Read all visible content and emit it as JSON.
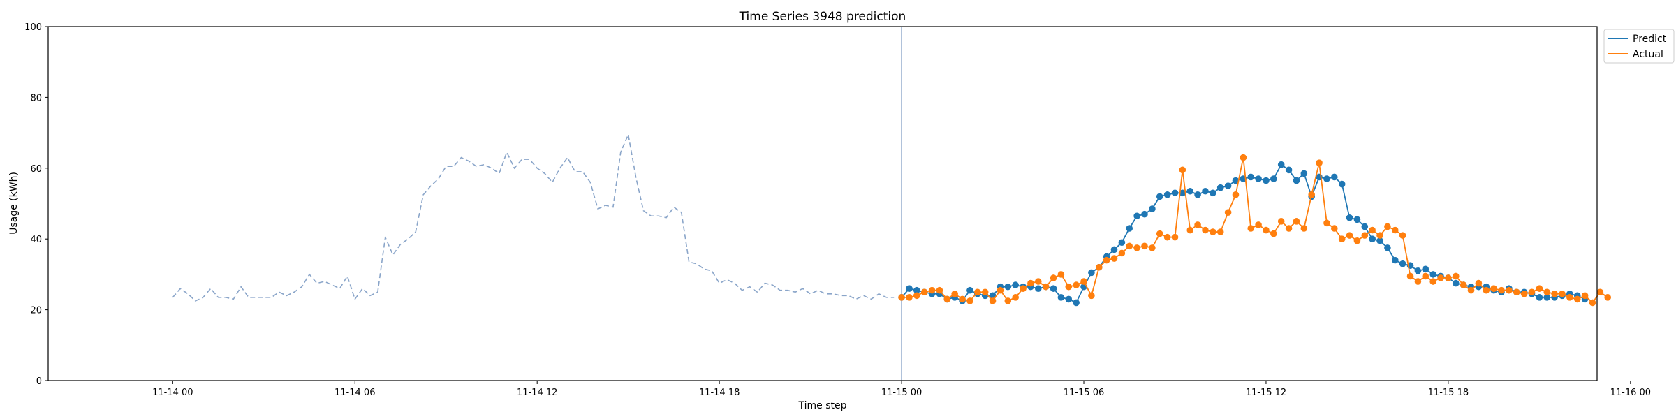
{
  "chart_data": {
    "type": "line",
    "title": "Time Series 3948 prediction",
    "xlabel": "Time step",
    "ylabel": "Usage (kWh)",
    "ylim": [
      0,
      100
    ],
    "xlim_hours": [
      -4.1,
      46.9
    ],
    "yticks": [
      0,
      20,
      40,
      60,
      80,
      100
    ],
    "xticks": [
      {
        "hour": 0,
        "label": "11-14 00"
      },
      {
        "hour": 6,
        "label": "11-14 06"
      },
      {
        "hour": 12,
        "label": "11-14 12"
      },
      {
        "hour": 18,
        "label": "11-14 18"
      },
      {
        "hour": 24,
        "label": "11-15 00"
      },
      {
        "hour": 30,
        "label": "11-15 06"
      },
      {
        "hour": 36,
        "label": "11-15 12"
      },
      {
        "hour": 42,
        "label": "11-15 18"
      },
      {
        "hour": 48,
        "label": "11-16 00"
      }
    ],
    "grid": false,
    "legend_position": "outside-top-right",
    "vline_hour": 24,
    "step_minutes": 15,
    "history": {
      "start_hour": 0,
      "color": "#8aa5c9",
      "style": "dashed",
      "values": [
        23.5,
        26,
        24.5,
        22.5,
        23.5,
        26,
        23.5,
        23.5,
        23,
        26.5,
        23.5,
        23.5,
        23.5,
        23.5,
        25,
        24,
        25,
        26.5,
        30,
        27.5,
        28,
        27,
        26,
        29.5,
        23,
        26,
        24,
        25,
        40.5,
        35.5,
        38.5,
        40,
        42,
        52.5,
        55,
        57,
        60.5,
        60.5,
        63,
        62,
        60.5,
        61,
        60,
        58.5,
        64.5,
        60,
        62.5,
        62.5,
        60,
        58.5,
        56,
        60,
        63,
        59,
        59,
        56,
        48.5,
        49.5,
        49,
        64.5,
        69.5,
        57.5,
        48,
        46.5,
        46.5,
        46,
        49,
        47.5,
        33.5,
        33,
        31.5,
        31,
        27.5,
        28.5,
        27.5,
        25.5,
        26.5,
        25,
        27.5,
        27,
        25.5,
        25.5,
        25,
        26,
        24.5,
        25.5,
        24.5,
        24.5,
        24,
        24,
        23,
        24,
        23,
        24.5,
        23.5,
        23.5
      ]
    },
    "series": [
      {
        "name": "Predict",
        "color": "#1f77b4",
        "start_hour": 24,
        "values": [
          23.5,
          26,
          25.5,
          25,
          24.5,
          24.5,
          23,
          23.5,
          22.5,
          25.5,
          24.5,
          24,
          24,
          26.5,
          26.5,
          27,
          26.5,
          26.5,
          26,
          26.5,
          26,
          23.5,
          23,
          22,
          26.5,
          30.5,
          32,
          35,
          37,
          39,
          43,
          46.5,
          47,
          48.5,
          52,
          52.5,
          53,
          53,
          53.5,
          52.5,
          53.5,
          53,
          54.5,
          55,
          56.5,
          57,
          57.5,
          57,
          56.5,
          57,
          61,
          59.5,
          56.5,
          58.5,
          52,
          57.5,
          57,
          57.5,
          55.5,
          46,
          45.5,
          43.5,
          40,
          39.5,
          37.5,
          34,
          33,
          32.5,
          31,
          31.5,
          30,
          29.5,
          29,
          27.5,
          27,
          26.5,
          26.5,
          26.5,
          25.5,
          25,
          26,
          25,
          25,
          24.5,
          23.5,
          23.5,
          23.5,
          24,
          24.5,
          24,
          23
        ]
      },
      {
        "name": "Actual",
        "color": "#ff7f0e",
        "start_hour": 24,
        "values": [
          23.5,
          23.5,
          24,
          25,
          25.5,
          25.5,
          23,
          24.5,
          23,
          22.5,
          25,
          25,
          22.5,
          25.5,
          22.5,
          23.5,
          26,
          27.5,
          28,
          26.5,
          29,
          30,
          26.5,
          27,
          28,
          24,
          32,
          34,
          34.5,
          36,
          38,
          37.5,
          38,
          37.5,
          41.5,
          40.5,
          40.5,
          59.5,
          42.5,
          44,
          42.5,
          42,
          42,
          47.5,
          52.5,
          63,
          43,
          44,
          42.5,
          41.5,
          45,
          43,
          45,
          43,
          52.5,
          61.5,
          44.5,
          43,
          40,
          41,
          39.5,
          41,
          42.5,
          41,
          43.5,
          42.5,
          41,
          29.5,
          28,
          29.5,
          28,
          29,
          29,
          29.5,
          27,
          25.5,
          27.5,
          25.5,
          26,
          25.5,
          25.5,
          25,
          24.5,
          25,
          26,
          25,
          24.5,
          24.5,
          23.5,
          23,
          24,
          22,
          25,
          23.5
        ]
      }
    ]
  }
}
